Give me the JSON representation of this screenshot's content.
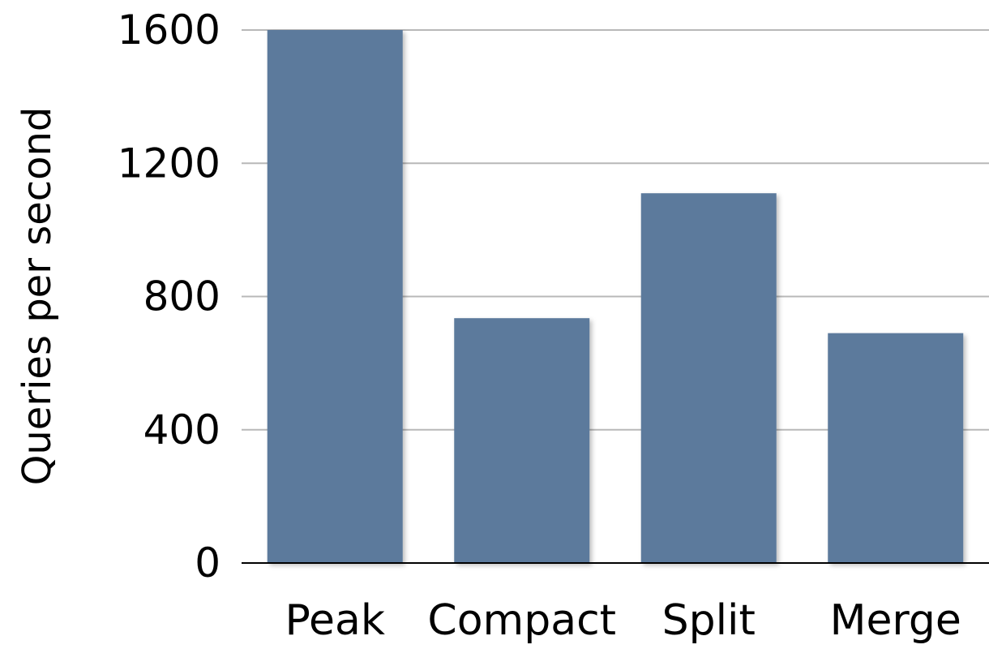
{
  "chart_data": {
    "type": "bar",
    "title": "",
    "xlabel": "",
    "ylabel": "Queries per second",
    "categories": [
      "Peak",
      "Compact",
      "Split",
      "Merge"
    ],
    "values": [
      1600,
      735,
      1110,
      690
    ],
    "ylim": [
      0,
      1600
    ],
    "yticks": [
      "0",
      "400",
      "800",
      "1200",
      "1600"
    ],
    "grid": true,
    "legend": "none",
    "bar_color": "#5c7a9c"
  }
}
